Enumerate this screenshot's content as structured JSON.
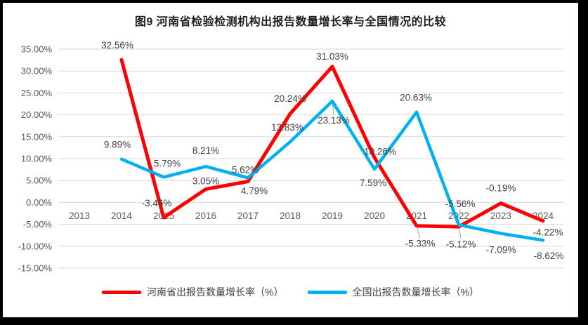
{
  "chart": {
    "title": "图9  河南省检验检测机构出报告数量增长率与全国情况的比较"
  },
  "chart_data": {
    "type": "line",
    "title": "图9  河南省检验检测机构出报告数量增长率与全国情况的比较",
    "categories": [
      "2013",
      "2014",
      "2015",
      "2016",
      "2017",
      "2018",
      "2019",
      "2020",
      "2021",
      "2022",
      "2023",
      "2024"
    ],
    "series": [
      {
        "name": "河南省出报告数量增长率（%）",
        "color": "#FF0000",
        "stroke_width": 5,
        "values": [
          null,
          32.56,
          -3.46,
          3.05,
          4.79,
          20.24,
          31.03,
          10.26,
          -5.33,
          -5.56,
          -0.19,
          -4.22
        ],
        "label_offsets": [
          null,
          [
            -6,
            -16
          ],
          [
            -10,
            -16
          ],
          [
            0,
            -7
          ],
          [
            9,
            18
          ],
          [
            0,
            -17
          ],
          [
            0,
            -10
          ],
          [
            8,
            -4
          ],
          [
            5,
            30,
            true
          ],
          [
            2,
            -28,
            true
          ],
          [
            0,
            -17
          ],
          [
            7,
            21
          ]
        ]
      },
      {
        "name": "全国出报告数量增长率（%）",
        "color": "#00B0F0",
        "stroke_width": 4.5,
        "values": [
          null,
          9.89,
          5.79,
          8.21,
          5.62,
          13.83,
          23.13,
          7.59,
          20.63,
          -5.12,
          -7.09,
          -8.62
        ],
        "label_offsets": [
          null,
          [
            -6,
            -16
          ],
          [
            5,
            -15
          ],
          [
            0,
            -18
          ],
          [
            -4,
            -7
          ],
          [
            -4,
            -16
          ],
          [
            2,
            32,
            true
          ],
          [
            -2,
            24
          ],
          [
            -1,
            -16
          ],
          [
            3,
            32,
            true
          ],
          [
            0,
            28
          ],
          [
            8,
            27
          ]
        ]
      }
    ],
    "ylim": [
      -15,
      35
    ],
    "ytick_step": 5,
    "ytick_labels": [
      "35.00%",
      "30.00%",
      "25.00%",
      "20.00%",
      "15.00%",
      "10.00%",
      "5.00%",
      "0.00%",
      "-5.00%",
      "-10.00%",
      "-15.00%"
    ],
    "grid": true,
    "legend_position": "bottom",
    "colors": {
      "gridline": "#D9D9D9",
      "axis_text": "#595959",
      "data_label_text": "#3F3F3F",
      "leader_line": "#A6A6A6",
      "frame": "#000000",
      "plot_background": "#FFFFFF"
    }
  },
  "legend": {
    "items": [
      {
        "label": "河南省出报告数量增长率（%）",
        "color": "#FF0000"
      },
      {
        "label": "全国出报告数量增长率（%）",
        "color": "#00B0F0"
      }
    ]
  }
}
